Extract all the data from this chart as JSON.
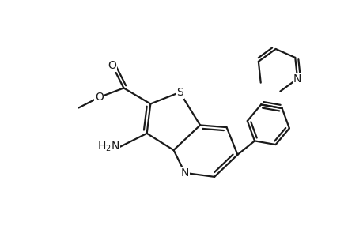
{
  "background_color": "#ffffff",
  "line_color": "#1a1a1a",
  "line_width": 1.6,
  "figsize": [
    4.6,
    3.0
  ],
  "dpi": 100,
  "xlim": [
    0,
    9.2
  ],
  "ylim": [
    0,
    6.0
  ]
}
